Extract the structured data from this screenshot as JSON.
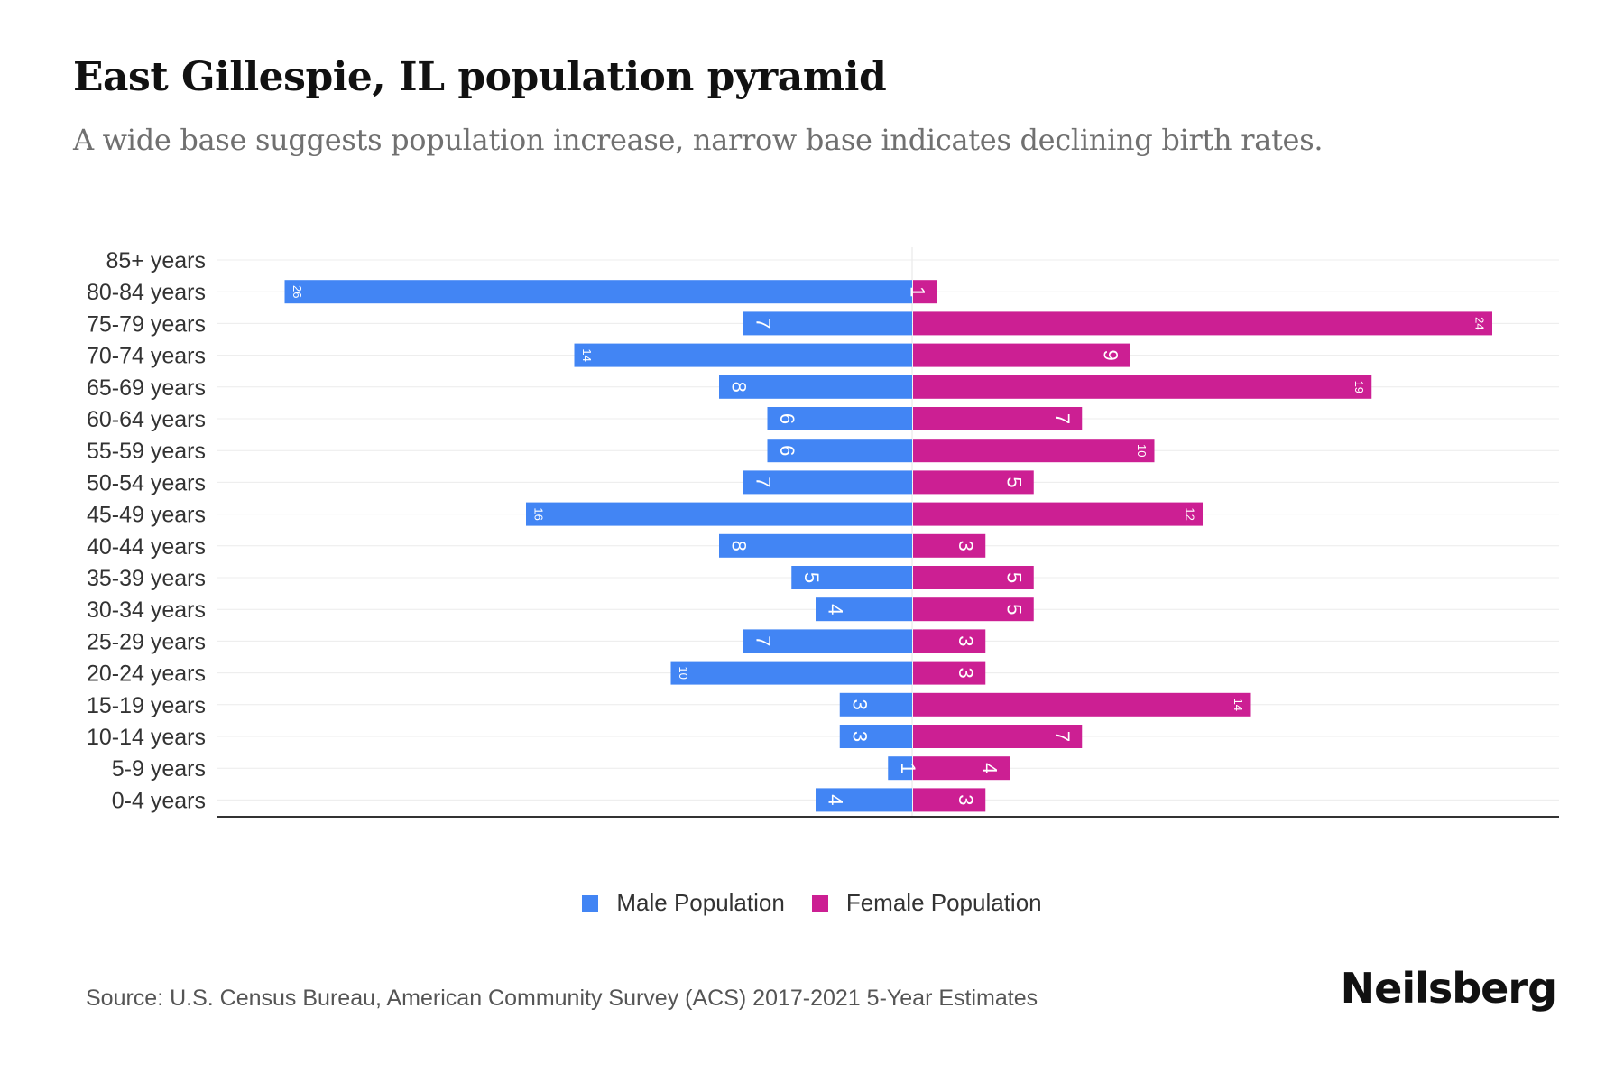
{
  "title": "East Gillespie, IL population pyramid",
  "subtitle": "A wide base suggests population increase, narrow base indicates declining birth rates.",
  "source": "Source: U.S. Census Bureau, American Community Survey (ACS) 2017-2021 5-Year Estimates",
  "brand": "Neilsberg",
  "legend": {
    "male": "Male Population",
    "female": "Female Population"
  },
  "colors": {
    "male": "#4285f4",
    "female": "#cc1f93"
  },
  "chart_data": {
    "type": "bar",
    "orientation": "horizontal-pyramid",
    "categories": [
      "85+ years",
      "80-84 years",
      "75-79 years",
      "70-74 years",
      "65-69 years",
      "60-64 years",
      "55-59 years",
      "50-54 years",
      "45-49 years",
      "40-44 years",
      "35-39 years",
      "30-34 years",
      "25-29 years",
      "20-24 years",
      "15-19 years",
      "10-14 years",
      "5-9 years",
      "0-4 years"
    ],
    "series": [
      {
        "name": "Male Population",
        "values": [
          0,
          26,
          7,
          14,
          8,
          6,
          6,
          7,
          16,
          8,
          5,
          4,
          7,
          10,
          3,
          3,
          1,
          4
        ]
      },
      {
        "name": "Female Population",
        "values": [
          0,
          1,
          24,
          9,
          19,
          7,
          10,
          5,
          12,
          3,
          5,
          5,
          3,
          3,
          14,
          7,
          4,
          3
        ]
      }
    ],
    "xlim": [
      -29,
      27
    ],
    "legend_position": "bottom-center",
    "grid": true
  }
}
